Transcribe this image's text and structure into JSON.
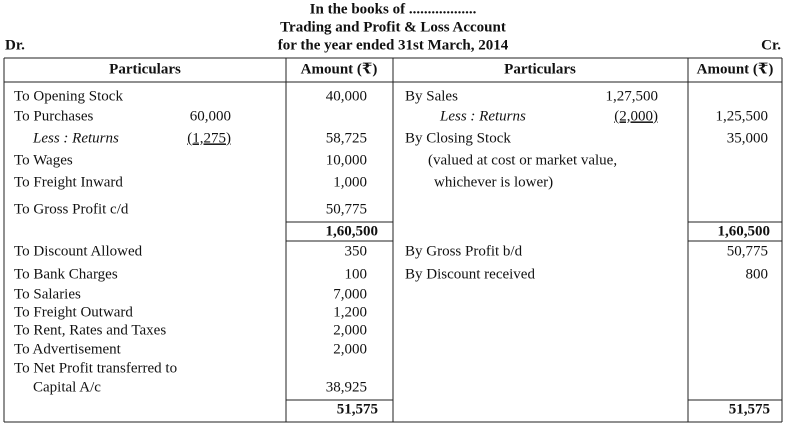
{
  "header": {
    "line1": "In the books of ..................",
    "title": "Trading and Profit & Loss Account",
    "period": "for the year ended 31st March, 2014",
    "dr": "Dr.",
    "cr": "Cr."
  },
  "table": {
    "headers": [
      "Particulars",
      "Amount (₹)",
      "Particulars",
      "Amount (₹)"
    ],
    "left": [
      {
        "particulars": "To Opening Stock",
        "amount": "40,000"
      },
      {
        "particulars": "To Purchases",
        "sub_amount": "60,000"
      },
      {
        "particulars": "Less : Returns",
        "sub_amount": "(1,275)",
        "amount": "58,725"
      },
      {
        "particulars": "To Wages",
        "amount": "10,000"
      },
      {
        "particulars": "To Freight Inward",
        "amount": "1,000"
      },
      {
        "particulars": "To Gross Profit c/d",
        "amount": "50,775"
      },
      {
        "particulars": "To Discount Allowed",
        "amount": "350"
      },
      {
        "particulars": "To Bank Charges",
        "amount": "100"
      },
      {
        "particulars": "To Salaries",
        "amount": "7,000"
      },
      {
        "particulars": "To Freight Outward",
        "amount": "1,200"
      },
      {
        "particulars": "To Rent, Rates and Taxes",
        "amount": "2,000"
      },
      {
        "particulars": "To Advertisement",
        "amount": "2,000"
      },
      {
        "particulars": "To Net Profit transferred to"
      },
      {
        "particulars": "Capital A/c",
        "amount": "38,925"
      }
    ],
    "right": [
      {
        "particulars": "By Sales",
        "sub_amount": "1,27,500"
      },
      {
        "particulars": "Less : Returns",
        "sub_amount": "(2,000)",
        "amount": "1,25,500"
      },
      {
        "particulars": "By Closing Stock",
        "amount": "35,000"
      },
      {
        "particulars": "(valued at cost or market value,"
      },
      {
        "particulars": "whichever is lower)"
      },
      {
        "particulars": "By Gross Profit b/d",
        "amount": "50,775"
      },
      {
        "particulars": "By Discount received",
        "amount": "800"
      }
    ],
    "totals": [
      {
        "left": "1,60,500",
        "right": "1,60,500"
      },
      {
        "left": "51,575",
        "right": "51,575"
      }
    ]
  }
}
